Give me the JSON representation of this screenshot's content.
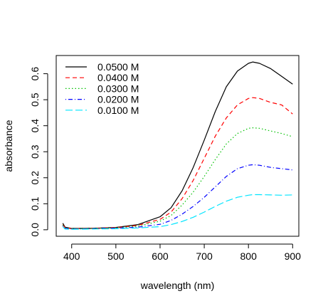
{
  "chart_data": {
    "type": "line",
    "title": "",
    "xlabel": "wavelength (nm)",
    "ylabel": "absorbance",
    "xlim": [
      365,
      914
    ],
    "ylim": [
      -0.025,
      0.67
    ],
    "xticks": [
      400,
      500,
      600,
      700,
      800,
      900
    ],
    "xtick_labels": [
      "400",
      "500",
      "600",
      "700",
      "800",
      "900"
    ],
    "yticks": [
      0.0,
      0.1,
      0.2,
      0.3,
      0.4,
      0.5,
      0.6
    ],
    "ytick_labels": [
      "0.0",
      "0.1",
      "0.2",
      "0.3",
      "0.4",
      "0.5",
      "0.6"
    ],
    "grid": false,
    "legend_position": "top-left",
    "x": [
      380,
      385,
      400,
      450,
      500,
      550,
      600,
      625,
      650,
      675,
      700,
      725,
      750,
      775,
      800,
      810,
      825,
      850,
      875,
      900
    ],
    "series": [
      {
        "name": "0.0500 M",
        "color": "#000000",
        "dash": "solid",
        "values": [
          0.025,
          0.01,
          0.005,
          0.006,
          0.009,
          0.02,
          0.05,
          0.085,
          0.15,
          0.24,
          0.345,
          0.455,
          0.55,
          0.61,
          0.64,
          0.645,
          0.64,
          0.62,
          0.59,
          0.56
        ]
      },
      {
        "name": "0.0400 M",
        "color": "#ff0000",
        "dash": "dashed",
        "values": [
          0.02,
          0.008,
          0.004,
          0.005,
          0.008,
          0.017,
          0.04,
          0.068,
          0.12,
          0.19,
          0.275,
          0.36,
          0.43,
          0.48,
          0.505,
          0.508,
          0.505,
          0.49,
          0.48,
          0.445
        ]
      },
      {
        "name": "0.0300 M",
        "color": "#00c000",
        "dash": "dotted",
        "values": [
          0.018,
          0.007,
          0.004,
          0.005,
          0.007,
          0.014,
          0.033,
          0.055,
          0.095,
          0.145,
          0.205,
          0.27,
          0.33,
          0.37,
          0.39,
          0.392,
          0.39,
          0.38,
          0.37,
          0.358
        ]
      },
      {
        "name": "0.0200 M",
        "color": "#0000ff",
        "dash": "dashdot",
        "values": [
          0.015,
          0.005,
          0.003,
          0.004,
          0.006,
          0.01,
          0.021,
          0.036,
          0.06,
          0.09,
          0.125,
          0.165,
          0.205,
          0.235,
          0.248,
          0.25,
          0.248,
          0.24,
          0.235,
          0.23
        ]
      },
      {
        "name": "0.0100 M",
        "color": "#00e5ff",
        "dash": "longdash",
        "values": [
          0.012,
          0.003,
          0.002,
          0.003,
          0.004,
          0.007,
          0.012,
          0.02,
          0.032,
          0.048,
          0.068,
          0.09,
          0.11,
          0.125,
          0.133,
          0.135,
          0.135,
          0.134,
          0.133,
          0.134
        ]
      }
    ]
  }
}
